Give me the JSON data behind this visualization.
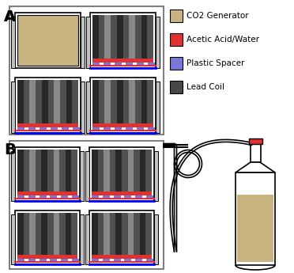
{
  "bg_color": "#ffffff",
  "co2_color": "#c8b480",
  "acid_color": "#e03030",
  "spacer_color": "#7878d8",
  "lead_colors": [
    "#282828",
    "#505050",
    "#888888",
    "#505050",
    "#282828",
    "#505050",
    "#888888",
    "#505050",
    "#282828",
    "#505050"
  ],
  "wall_color": "#c0c0c0",
  "border_lw": 1.2,
  "legend": [
    {
      "color": "#c8b480",
      "label": "CO2 Generator"
    },
    {
      "color": "#e03030",
      "label": "Acetic Acid/Water"
    },
    {
      "color": "#7878d8",
      "label": "Plastic Spacer"
    },
    {
      "color": "#484848",
      "label": "Lead Coil"
    }
  ],
  "fig_w": 3.72,
  "fig_h": 3.45,
  "dpi": 100
}
